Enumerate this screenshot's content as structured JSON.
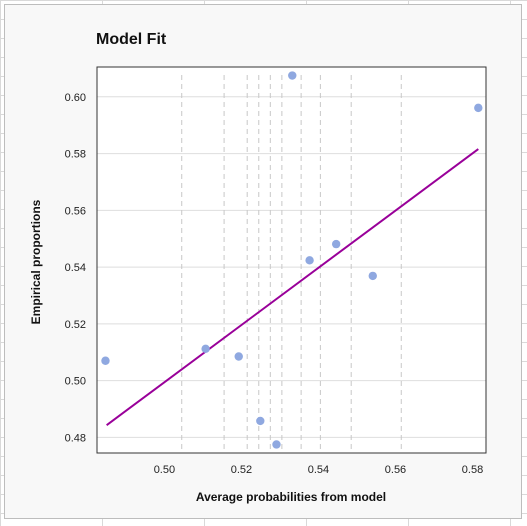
{
  "chart_data": {
    "type": "scatter",
    "title": "Model Fit",
    "xlabel": "Average probabilities from model",
    "ylabel": "Empirical proportions",
    "xlim": [
      0.4825,
      0.5835
    ],
    "ylim": [
      0.4745,
      0.6105
    ],
    "x_ticks": [
      0.5,
      0.52,
      0.54,
      0.56,
      0.58
    ],
    "x_tick_labels": [
      "0.50",
      "0.52",
      "0.54",
      "0.56",
      "0.58"
    ],
    "y_ticks": [
      0.48,
      0.5,
      0.52,
      0.54,
      0.56,
      0.58,
      0.6
    ],
    "y_tick_labels": [
      "0.48",
      "0.50",
      "0.52",
      "0.54",
      "0.56",
      "0.58",
      "0.60"
    ],
    "grid": "horizontal",
    "bin_boundaries": [
      0.5045,
      0.5155,
      0.5215,
      0.5245,
      0.5275,
      0.5305,
      0.5355,
      0.5405,
      0.5485,
      0.5615
    ],
    "points": [
      {
        "x": 0.4847,
        "y": 0.507
      },
      {
        "x": 0.5107,
        "y": 0.5112
      },
      {
        "x": 0.5193,
        "y": 0.5085
      },
      {
        "x": 0.5249,
        "y": 0.4858
      },
      {
        "x": 0.5291,
        "y": 0.4775
      },
      {
        "x": 0.5332,
        "y": 0.6075
      },
      {
        "x": 0.5377,
        "y": 0.5424
      },
      {
        "x": 0.5446,
        "y": 0.5481
      },
      {
        "x": 0.5541,
        "y": 0.5369
      },
      {
        "x": 0.5815,
        "y": 0.5961
      }
    ],
    "fit_line": [
      {
        "x": 0.485,
        "y": 0.4843
      },
      {
        "x": 0.5815,
        "y": 0.5816
      }
    ],
    "colors": {
      "points": "#8fa8e0",
      "fit_line": "#990099",
      "gridline": "#dedede",
      "bin_line": "#c8c8c8"
    }
  }
}
